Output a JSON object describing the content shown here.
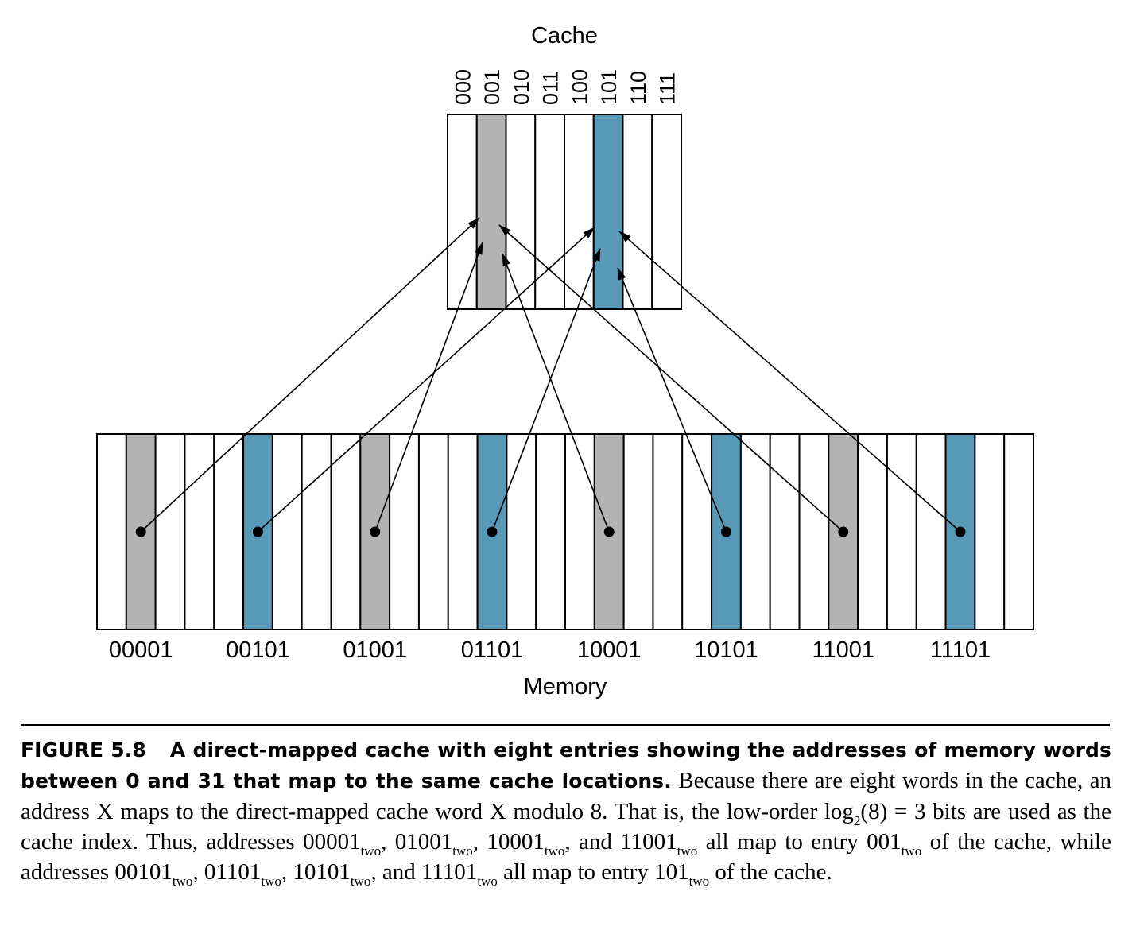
{
  "diagram": {
    "cache_title": "Cache",
    "memory_title": "Memory",
    "cache_indices": [
      "000",
      "001",
      "010",
      "011",
      "100",
      "101",
      "110",
      "111"
    ],
    "memory_labels": [
      "00001",
      "00101",
      "01001",
      "01101",
      "10001",
      "10101",
      "11001",
      "11101"
    ],
    "memory_word_count": 32,
    "mapping_note": "memory word X maps to cache entry X modulo 8",
    "colors": {
      "cell_fill": "#ffffff",
      "entry_001_fill": "#b3b3b3",
      "entry_101_fill": "#5899b8",
      "stroke": "#000000"
    }
  },
  "caption": {
    "label": "FIGURE 5.8",
    "bold_title": "A direct-mapped cache with eight entries showing the addresses of memory words between 0 and 31 that map to the same cache locations.",
    "s1": " Because there are eight words in the cache, an address X maps to the direct-mapped cache word X modulo 8. That is, the low-order log",
    "sub_2": "2",
    "s2": "(8) = 3 bits are used as the cache index. Thus, addresses 00001",
    "sub_two": "two",
    "s3": ", 01001",
    "s4": ", 10001",
    "s5": ", and 11001",
    "s6": " all map to entry 001",
    "s7": " of the cache, while addresses 00101",
    "s8": ", 01101",
    "s9": ", 10101",
    "s10": ", and 11101",
    "s11": " all map to entry 101",
    "s12": " of the cache."
  }
}
